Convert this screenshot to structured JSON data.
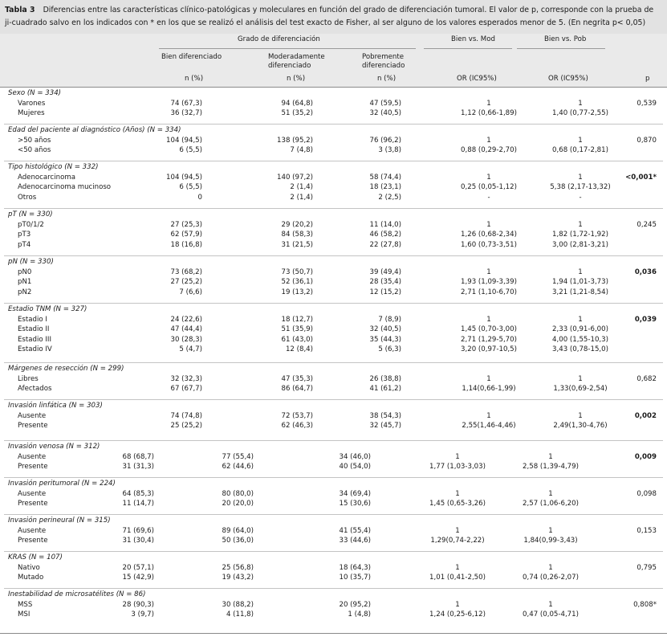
{
  "caption": {
    "label": "Tabla 3",
    "text": "Diferencias entre las características clínico-patológicas y moleculares en función del grado de diferenciación tumoral. El valor de p, corresponde con la prueba de ji-cuadrado salvo en los indicados con * en los que se realizó el análisis del test exacto de Fisher, al ser alguno de los valores esperados menor de 5. (En negrita p< 0,05)"
  },
  "header": {
    "group": "Grado de diferenciación",
    "col_bien": "Bien diferenciado",
    "col_mod": "Moderadamente diferenciado",
    "col_pob": "Pobremente diferenciado",
    "n_pct": "n (%)",
    "bien_vs_mod": "Bien vs. Mod",
    "bien_vs_pob": "Bien vs. Pob",
    "or_ic": "OR (IC95%)",
    "p": "p"
  },
  "sections": [
    {
      "title": "Sexo (N = 334)",
      "rows": [
        {
          "label": "Varones",
          "bien": "74 (67,3)",
          "mod": "94 (64,8)",
          "pob": "47 (59,5)",
          "or_mod": "1",
          "or_pob": "1",
          "p": "0,539",
          "bold": false
        },
        {
          "label": "Mujeres",
          "bien": "36 (32,7)",
          "mod": "51 (35,2)",
          "pob": "32 (40,5)",
          "or_mod": "1,12 (0,66-1,89)",
          "or_pob": "1,40 (0,77-2,55)",
          "p": "",
          "bold": false
        }
      ]
    },
    {
      "title": "Edad del paciente al diagnóstico (Años) (N = 334)",
      "rows": [
        {
          "label": ">50 años",
          "bien": "104 (94,5)",
          "mod": "138 (95,2)",
          "pob": "76 (96,2)",
          "or_mod": "1",
          "or_pob": "1",
          "p": "0,870",
          "bold": false
        },
        {
          "label": "<50 años",
          "bien": "6 (5,5)",
          "mod": "7 (4,8)",
          "pob": "3 (3,8)",
          "or_mod": "0,88 (0,29-2,70)",
          "or_pob": "0,68 (0,17-2,81)",
          "p": "",
          "bold": false
        }
      ]
    },
    {
      "title": "Tipo histológico (N = 332)",
      "rows": [
        {
          "label": "Adenocarcinoma",
          "bien": "104 (94,5)",
          "mod": "140 (97,2)",
          "pob": "58 (74,4)",
          "or_mod": "1",
          "or_pob": "1",
          "p": "<0,001*",
          "bold": true
        },
        {
          "label": "Adenocarcinoma mucinoso",
          "bien": "6 (5,5)",
          "mod": "2 (1,4)",
          "pob": "18 (23,1)",
          "or_mod": "0,25 (0,05-1,12)",
          "or_pob": "5,38 (2,17-13,32)",
          "p": "",
          "bold": false
        },
        {
          "label": "Otros",
          "bien": "0",
          "mod": "2 (1,4)",
          "pob": "2 (2,5)",
          "or_mod": "-",
          "or_pob": "-",
          "p": "",
          "bold": false
        }
      ]
    },
    {
      "title": "pT (N = 330)",
      "rows": [
        {
          "label": "pT0/1/2",
          "bien": "27 (25,3)",
          "mod": "29 (20,2)",
          "pob": "11 (14,0)",
          "or_mod": "1",
          "or_pob": "1",
          "p": "0,245",
          "bold": false
        },
        {
          "label": "pT3",
          "bien": "62 (57,9)",
          "mod": "84 (58,3)",
          "pob": "46 (58,2)",
          "or_mod": "1,26 (0,68-2,34)",
          "or_pob": "1,82 (1,72-1,92)",
          "p": "",
          "bold": false
        },
        {
          "label": "pT4",
          "bien": "18 (16,8)",
          "mod": "31 (21,5)",
          "pob": "22 (27,8)",
          "or_mod": "1,60 (0,73-3,51)",
          "or_pob": "3,00 (2,81-3,21)",
          "p": "",
          "bold": false
        }
      ]
    },
    {
      "title": "pN (N = 330)",
      "rows": [
        {
          "label": "pN0",
          "bien": "73 (68,2)",
          "mod": "73 (50,7)",
          "pob": "39 (49,4)",
          "or_mod": "1",
          "or_pob": "1",
          "p": "0,036",
          "bold": true
        },
        {
          "label": "pN1",
          "bien": "27 (25,2)",
          "mod": "52 (36,1)",
          "pob": "28 (35,4)",
          "or_mod": "1,93 (1,09-3,39)",
          "or_pob": "1,94 (1,01-3,73)",
          "p": "",
          "bold": false
        },
        {
          "label": "pN2",
          "bien": "7 (6,6)",
          "mod": "19 (13,2)",
          "pob": "12 (15,2)",
          "or_mod": "2,71 (1,10-6,70)",
          "or_pob": "3,21 (1,21-8,54)",
          "p": "",
          "bold": false
        }
      ]
    },
    {
      "title": "Estadio TNM (N = 327)",
      "rows": [
        {
          "label": "Estadio I",
          "bien": "24 (22,6)",
          "mod": "18 (12,7)",
          "pob": "7 (8,9)",
          "or_mod": "1",
          "or_pob": "1",
          "p": "0,039",
          "bold": true
        },
        {
          "label": "Estadio II",
          "bien": "47 (44,4)",
          "mod": "51 (35,9)",
          "pob": "32 (40,5)",
          "or_mod": "1,45 (0,70-3,00)",
          "or_pob": "2,33 (0,91-6,00)",
          "p": "",
          "bold": false
        },
        {
          "label": "Estadio III",
          "bien": "30 (28,3)",
          "mod": "61 (43,0)",
          "pob": "35 (44,3)",
          "or_mod": "2,71 (1,29-5,70)",
          "or_pob": "4,00 (1,55-10,3)",
          "p": "",
          "bold": false
        },
        {
          "label": "Estadio IV",
          "bien": "5 (4,7)",
          "mod": "12 (8,4)",
          "pob": "5 (6,3)",
          "or_mod": "3,20 (0,97-10,5)",
          "or_pob": "3,43 (0,78-15,0)",
          "p": "",
          "bold": false
        }
      ]
    },
    {
      "title": "Márgenes de resección (N = 299)",
      "rows": [
        {
          "label": "Libres",
          "bien": "32 (32,3)",
          "mod": "47 (35,3)",
          "pob": "26 (38,8)",
          "or_mod": "1",
          "or_pob": "1",
          "p": "0,682",
          "bold": false
        },
        {
          "label": "Afectados",
          "bien": "67 (67,7)",
          "mod": "86 (64,7)",
          "pob": "41 (61,2)",
          "or_mod": "1,14(0,66-1,99)",
          "or_pob": "1,33(0,69-2,54)",
          "p": "",
          "bold": false
        }
      ]
    },
    {
      "title": "Invasión linfática (N = 303)",
      "rows": [
        {
          "label": "Ausente",
          "bien": "74 (74,8)",
          "mod": "72 (53,7)",
          "pob": "38 (54,3)",
          "or_mod": "1",
          "or_pob": "1",
          "p": "0,002",
          "bold": true
        },
        {
          "label": "Presente",
          "bien": "25 (25,2)",
          "mod": "62 (46,3)",
          "pob": "32 (45,7)",
          "or_mod": "2,55(1,46-4,46)",
          "or_pob": "2,49(1,30-4,76)",
          "p": "",
          "bold": false
        }
      ]
    },
    {
      "title": "Invasión venosa (N = 312)",
      "rows": [
        {
          "label": "Ausente",
          "bien": "68 (68,7)",
          "mod": "77 (55,4)",
          "pob": "34 (46,0)",
          "or_mod": "1",
          "or_pob": "1",
          "p": "0,009",
          "bold": true
        },
        {
          "label": "Presente",
          "bien": "31 (31,3)",
          "mod": "62 (44,6)",
          "pob": "40 (54,0)",
          "or_mod": "1,77 (1,03-3,03)",
          "or_pob": "2,58 (1,39-4,79)",
          "p": "",
          "bold": false
        }
      ]
    },
    {
      "title": "Invasión peritumoral (N = 224)",
      "rows": [
        {
          "label": "Ausente",
          "bien": "64 (85,3)",
          "mod": "80 (80,0)",
          "pob": "34 (69,4)",
          "or_mod": "1",
          "or_pob": "1",
          "p": "0,098",
          "bold": false
        },
        {
          "label": "Presente",
          "bien": "11 (14,7)",
          "mod": "20 (20,0)",
          "pob": "15 (30,6)",
          "or_mod": "1,45 (0,65-3,26)",
          "or_pob": "2,57 (1,06-6,20)",
          "p": "",
          "bold": false
        }
      ]
    },
    {
      "title": "Invasión perineural (N = 315)",
      "rows": [
        {
          "label": "Ausente",
          "bien": "71 (69,6)",
          "mod": "89 (64,0)",
          "pob": "41 (55,4)",
          "or_mod": "1",
          "or_pob": "1",
          "p": "0,153",
          "bold": false
        },
        {
          "label": "Presente",
          "bien": "31 (30,4)",
          "mod": "50 (36,0)",
          "pob": "33 (44,6)",
          "or_mod": "1,29(0,74-2,22)",
          "or_pob": "1,84(0,99-3,43)",
          "p": "",
          "bold": false
        }
      ]
    },
    {
      "title": "KRAS (N = 107)",
      "rows": [
        {
          "label": "Nativo",
          "bien": "20 (57,1)",
          "mod": "25 (56,8)",
          "pob": "18 (64,3)",
          "or_mod": "1",
          "or_pob": "1",
          "p": "0,795",
          "bold": false
        },
        {
          "label": "Mutado",
          "bien": "15 (42,9)",
          "mod": "19 (43,2)",
          "pob": "10 (35,7)",
          "or_mod": "1,01 (0,41-2,50)",
          "or_pob": "0,74 (0,26-2,07)",
          "p": "",
          "bold": false
        }
      ]
    },
    {
      "title": "Inestabilidad de microsatélites (N = 86)",
      "rows": [
        {
          "label": "MSS",
          "bien": "28 (90,3)",
          "mod": "30 (88,2)",
          "pob": "20 (95,2)",
          "or_mod": "1",
          "or_pob": "1",
          "p": "0,808*",
          "bold": false
        },
        {
          "label": "MSI",
          "bien": "3 (9,7)",
          "mod": "4 (11,8)",
          "pob": "1 (4,8)",
          "or_mod": "1,24 (0,25-6,12)",
          "or_pob": "0,47 (0,05-4,71)",
          "p": "",
          "bold": false
        }
      ]
    }
  ]
}
